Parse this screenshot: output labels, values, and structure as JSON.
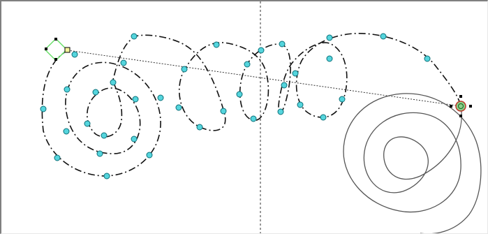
{
  "colors": {
    "background": "#ffffff",
    "frame_shadow": "#808080",
    "stroke_dark": "#111111",
    "stroke_grey": "#555555",
    "control_point_fill": "#55d5dd",
    "control_point_stroke": "#0b6f78",
    "start_handle_stroke": "#6fe06f",
    "end_handle_fill": "#8ad08a",
    "end_handle_ring": "#c0392b",
    "square_marker_fill": "#f5f59a"
  },
  "icons": {
    "start_handle": "diamond-handle-icon",
    "end_handle": "crosshair-target-icon",
    "control_point": "circle-point-icon"
  }
}
